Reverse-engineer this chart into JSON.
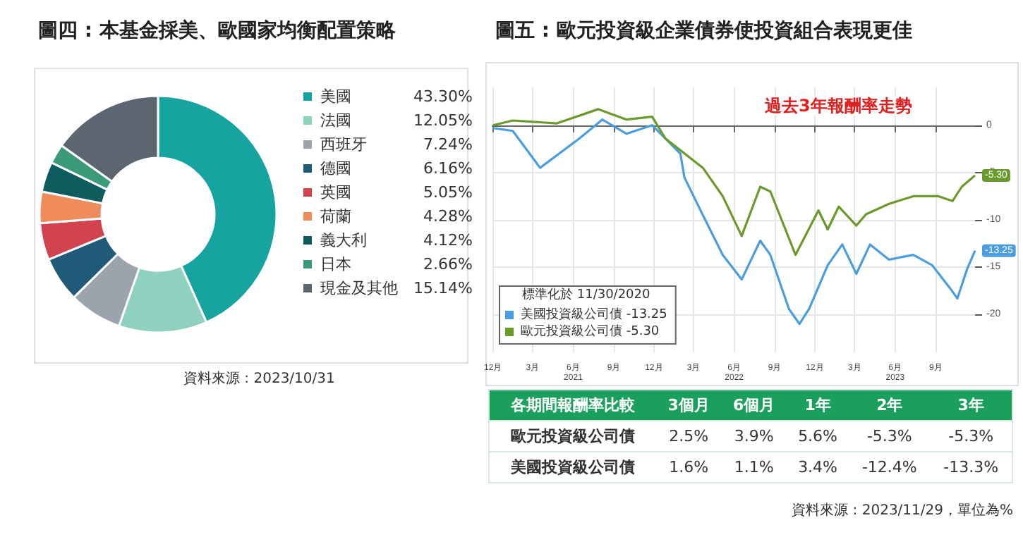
{
  "chart_data": [
    {
      "type": "donut",
      "title": "圖四 : 本基金採美、歐國家均衡配置策略",
      "categories": [
        "美國",
        "法國",
        "西班牙",
        "德國",
        "英國",
        "荷蘭",
        "義大利",
        "日本",
        "現金及其他"
      ],
      "values": [
        43.3,
        12.05,
        7.24,
        6.16,
        5.05,
        4.28,
        4.12,
        2.66,
        15.14
      ],
      "value_labels": [
        "43.30%",
        "12.05%",
        "7.24%",
        "6.16%",
        "5.05%",
        "4.28%",
        "4.12%",
        "2.66%",
        "15.14%"
      ],
      "colors": [
        "#17a3a0",
        "#8ed1bf",
        "#9ba4ac",
        "#1f5b78",
        "#d1434e",
        "#f08b5b",
        "#0f5c5f",
        "#3b9b79",
        "#5c6670"
      ],
      "legend": "right",
      "annotations": [
        "資料來源 : 2023/10/31"
      ]
    },
    {
      "type": "line",
      "title": "圖五 : 歐元投資級企業債券使投資組合表現更佳",
      "legend_title": "標準化於 11/30/2020",
      "legend": "bottom left",
      "grid": true,
      "marker": "none",
      "xlim": [
        "2020-11-30",
        "2023-11-29"
      ],
      "xticks": [
        {
          "value": "2020-12-01",
          "label": "12月"
        },
        {
          "value": "2021-03-01",
          "label": "3月"
        },
        {
          "value": "2021-06-01",
          "label": "6月\n2021"
        },
        {
          "value": "2021-09-01",
          "label": "9月"
        },
        {
          "value": "2021-12-01",
          "label": "12月"
        },
        {
          "value": "2022-03-01",
          "label": "3月"
        },
        {
          "value": "2022-06-01",
          "label": "6月\n2022"
        },
        {
          "value": "2022-09-01",
          "label": "9月"
        },
        {
          "value": "2022-12-01",
          "label": "12月"
        },
        {
          "value": "2023-03-01",
          "label": "3月"
        },
        {
          "value": "2023-06-01",
          "label": "6月\n2023"
        },
        {
          "value": "2023-09-01",
          "label": "9月"
        }
      ],
      "ylim": [
        -24,
        4
      ],
      "yticks": [
        0,
        -5,
        -10,
        -15,
        -20
      ],
      "annotations": [
        "過去3年報酬率走勢"
      ],
      "series": [
        {
          "name": "美國投資級公司債 -13.25",
          "color": "#4a9ee0",
          "x": [
            "2020-12-01",
            "2021-01-15",
            "2021-03-18",
            "2021-06-15",
            "2021-08-06",
            "2021-09-30",
            "2021-11-27",
            "2022-01-30",
            "2022-02-08",
            "2022-03-22",
            "2022-05-06",
            "2022-06-18",
            "2022-07-30",
            "2022-08-22",
            "2022-10-03",
            "2022-10-27",
            "2022-11-18",
            "2022-12-30",
            "2023-02-01",
            "2023-03-05",
            "2023-04-05",
            "2023-05-18",
            "2023-07-12",
            "2023-08-24",
            "2023-10-03",
            "2023-10-20",
            "2023-11-11",
            "2023-11-29"
          ],
          "values": [
            -0.3,
            -0.6,
            -4.5,
            -1.4,
            0.6,
            -0.9,
            0,
            -3,
            -5.5,
            -9.5,
            -13.7,
            -16.3,
            -12.2,
            -13.7,
            -19.4,
            -21,
            -19.4,
            -14.8,
            -12.6,
            -15.7,
            -12.6,
            -14.2,
            -13.7,
            -14.8,
            -17.2,
            -18.3,
            -15.2,
            -13.25
          ],
          "value_labels": [
            null,
            null,
            null,
            null,
            null,
            null,
            null,
            null,
            null,
            null,
            null,
            null,
            null,
            null,
            null,
            null,
            null,
            null,
            null,
            null,
            null,
            null,
            null,
            null,
            null,
            null,
            null,
            "-13.25"
          ]
        },
        {
          "name": "歐元投資級公司債 -5.30",
          "color": "#6b9a2c",
          "x": [
            "2020-12-01",
            "2021-01-15",
            "2021-04-25",
            "2021-07-28",
            "2021-09-30",
            "2021-11-27",
            "2021-12-27",
            "2022-03-22",
            "2022-05-06",
            "2022-06-18",
            "2022-07-30",
            "2022-08-22",
            "2022-10-18",
            "2022-12-09",
            "2022-12-30",
            "2023-01-24",
            "2023-03-05",
            "2023-03-27",
            "2023-05-18",
            "2023-07-12",
            "2023-09-07",
            "2023-10-09",
            "2023-10-30",
            "2023-11-29"
          ],
          "values": [
            0,
            0.5,
            0.2,
            1.7,
            0.6,
            0.9,
            -1.4,
            -4.5,
            -7.5,
            -11.7,
            -6.5,
            -7,
            -13.7,
            -9,
            -11,
            -8.6,
            -10.6,
            -9.4,
            -8.3,
            -7.5,
            -7.5,
            -8,
            -6.5,
            -5.3
          ],
          "value_labels": [
            null,
            null,
            null,
            null,
            null,
            null,
            null,
            null,
            null,
            null,
            null,
            null,
            null,
            null,
            null,
            null,
            null,
            null,
            null,
            null,
            null,
            null,
            null,
            "-5.30"
          ]
        }
      ]
    },
    {
      "type": "other",
      "title": "各期間報酬率比較",
      "categories": [
        "3個月",
        "6個月",
        "1年",
        "2年",
        "3年"
      ],
      "series": [
        {
          "name": "歐元投資級公司債",
          "values": [
            2.5,
            3.9,
            5.6,
            -5.3,
            -5.3
          ],
          "value_labels": [
            "2.5%",
            "3.9%",
            "5.6%",
            "-5.3%",
            "-5.3%"
          ]
        },
        {
          "name": "美國投資級公司債",
          "values": [
            1.6,
            1.1,
            3.4,
            -12.4,
            -13.3
          ],
          "value_labels": [
            "1.6%",
            "1.1%",
            "3.4%",
            "-12.4%",
            "-13.3%"
          ]
        }
      ],
      "annotations": [
        "資料來源 : 2023/11/29，單位為%"
      ]
    }
  ]
}
